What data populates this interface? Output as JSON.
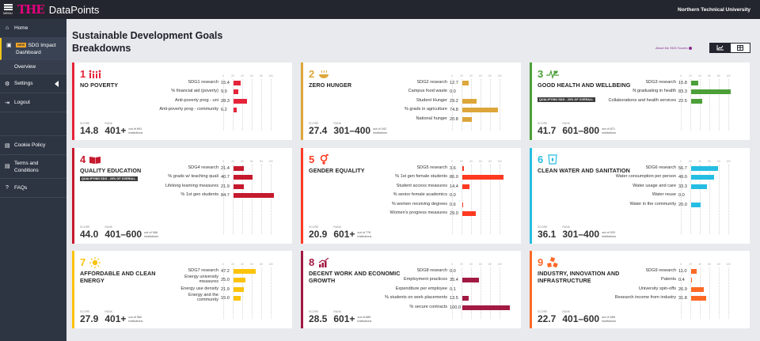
{
  "app": {
    "menu_label": "MENU",
    "logo": "THE",
    "brand": "DataPoints",
    "institution": "Northern Technical University"
  },
  "sidebar": {
    "home": "Home",
    "new_badge": "NEW",
    "sdg_dashboard": "SDG Impact Dashboard",
    "overview": "Overview",
    "settings": "Settings",
    "logout": "Logout",
    "cookie": "Cookie Policy",
    "terms": "Terms and Conditions",
    "faqs": "FAQs"
  },
  "page": {
    "title": "Sustainable Development Goals Breakdowns",
    "about_link": "About the SDG Scores",
    "toggle": [
      "chart-view",
      "table-view"
    ]
  },
  "labels": {
    "score": "SCORE",
    "rank": "RANK",
    "scale": [
      "0",
      "20",
      "40",
      "60",
      "80",
      "100"
    ]
  },
  "cards": [
    {
      "num": "1",
      "title": "NO POVERTY",
      "color": "#e5243b",
      "icon": "family-icon",
      "qualifying": "",
      "score": "14.8",
      "rank": "401+",
      "out_of": "out of 691 institutions",
      "metrics": [
        {
          "label": "SDG1 research",
          "value": "15.4"
        },
        {
          "label": "% financial aid (poverty)",
          "value": "9.9"
        },
        {
          "label": "Anti-poverty prog - uni",
          "value": "28.3"
        },
        {
          "label": "Anti-poverty prog - community",
          "value": "6.2"
        }
      ]
    },
    {
      "num": "2",
      "title": "ZERO HUNGER",
      "color": "#dda63a",
      "icon": "bowl-icon",
      "qualifying": "",
      "score": "27.4",
      "rank": "301–400",
      "out_of": "out of 442 institutions",
      "metrics": [
        {
          "label": "SDG2 research",
          "value": "12.7"
        },
        {
          "label": "Campus food waste",
          "value": "0.0"
        },
        {
          "label": "Student Hunger",
          "value": "29.2"
        },
        {
          "label": "% grads in agriculture",
          "value": "74.8"
        },
        {
          "label": "National hunger",
          "value": "20.8"
        }
      ]
    },
    {
      "num": "3",
      "title": "GOOD HEALTH AND WELLBEING",
      "color": "#4c9f38",
      "icon": "heartbeat-icon",
      "qualifying": "QUALIFYING SDG - 20% OF OVERALL",
      "score": "41.7",
      "rank": "601–800",
      "out_of": "out of 871 institutions",
      "metrics": [
        {
          "label": "SDG3 research",
          "value": "15.8"
        },
        {
          "label": "N graduating in health",
          "value": "83.3"
        },
        {
          "label": "Collaborations and health services",
          "value": "22.5"
        }
      ]
    },
    {
      "num": "4",
      "title": "QUALITY EDUCATION",
      "color": "#c5192d",
      "icon": "book-icon",
      "qualifying": "QUALIFYING SDG - 20% OF OVERALL",
      "score": "44.0",
      "rank": "401–600",
      "out_of": "out of 966 institutions",
      "metrics": [
        {
          "label": "SDG4 research",
          "value": "21.4"
        },
        {
          "label": "% grads w/ teaching quali",
          "value": "40.7"
        },
        {
          "label": "Lifelong learning measures",
          "value": "21.9"
        },
        {
          "label": "% 1st gen students",
          "value": "84.7"
        }
      ]
    },
    {
      "num": "5",
      "title": "GENDER EQUALITY",
      "color": "#ff3a21",
      "icon": "gender-icon",
      "qualifying": "",
      "score": "20.9",
      "rank": "601+",
      "out_of": "out of 776 institutions",
      "metrics": [
        {
          "label": "SDG5 research",
          "value": "3.6"
        },
        {
          "label": "% 1st gen female students",
          "value": "86.0"
        },
        {
          "label": "Student access measures",
          "value": "14.4"
        },
        {
          "label": "% senior female academics",
          "value": "0.0"
        },
        {
          "label": "% women receiving degrees",
          "value": "0.6"
        },
        {
          "label": "Women's progress measures",
          "value": "29.0"
        }
      ]
    },
    {
      "num": "6",
      "title": "CLEAN WATER AND SANITATION",
      "color": "#26bde2",
      "icon": "water-icon",
      "qualifying": "",
      "score": "36.1",
      "rank": "301–400",
      "out_of": "out of 520 institutions",
      "metrics": [
        {
          "label": "SDG6 research",
          "value": "56.7"
        },
        {
          "label": "Water consumption per person",
          "value": "49.0"
        },
        {
          "label": "Water usage and care",
          "value": "33.3"
        },
        {
          "label": "Water reuse",
          "value": "0.0"
        },
        {
          "label": "Water in the community",
          "value": "20.0"
        }
      ]
    },
    {
      "num": "7",
      "title": "AFFORDABLE AND CLEAN ENERGY",
      "color": "#fcc30b",
      "icon": "sun-icon",
      "qualifying": "",
      "score": "27.9",
      "rank": "401+",
      "out_of": "out of 560 institutions",
      "metrics": [
        {
          "label": "SDG7 research",
          "value": "47.2"
        },
        {
          "label": "Energy university measures",
          "value": "25.0"
        },
        {
          "label": "Energy use density",
          "value": "21.9"
        },
        {
          "label": "Energy and the community",
          "value": "15.0"
        }
      ]
    },
    {
      "num": "8",
      "title": "DECENT WORK AND ECONOMIC GROWTH",
      "color": "#a21942",
      "icon": "growth-chart-icon",
      "qualifying": "",
      "score": "28.5",
      "rank": "601+",
      "out_of": "out of 685 institutions",
      "metrics": [
        {
          "label": "SDG8 research",
          "value": "0.0"
        },
        {
          "label": "Employment practices",
          "value": "35.4"
        },
        {
          "label": "Expenditure per employee",
          "value": "0.1"
        },
        {
          "label": "% students on work placements",
          "value": "13.5"
        },
        {
          "label": "% secure contracts",
          "value": "100.0"
        }
      ]
    },
    {
      "num": "9",
      "title": "INDUSTRY, INNOVATION AND INFRASTRUCTURE",
      "color": "#fd6925",
      "icon": "cubes-icon",
      "qualifying": "",
      "score": "22.7",
      "rank": "401–600",
      "out_of": "out of 685 institutions",
      "metrics": [
        {
          "label": "SDG9 research",
          "value": "11.0"
        },
        {
          "label": "Patents",
          "value": "0.4"
        },
        {
          "label": "University spin-offs",
          "value": "26.9"
        },
        {
          "label": "Research income from industry",
          "value": "31.8"
        }
      ]
    }
  ]
}
